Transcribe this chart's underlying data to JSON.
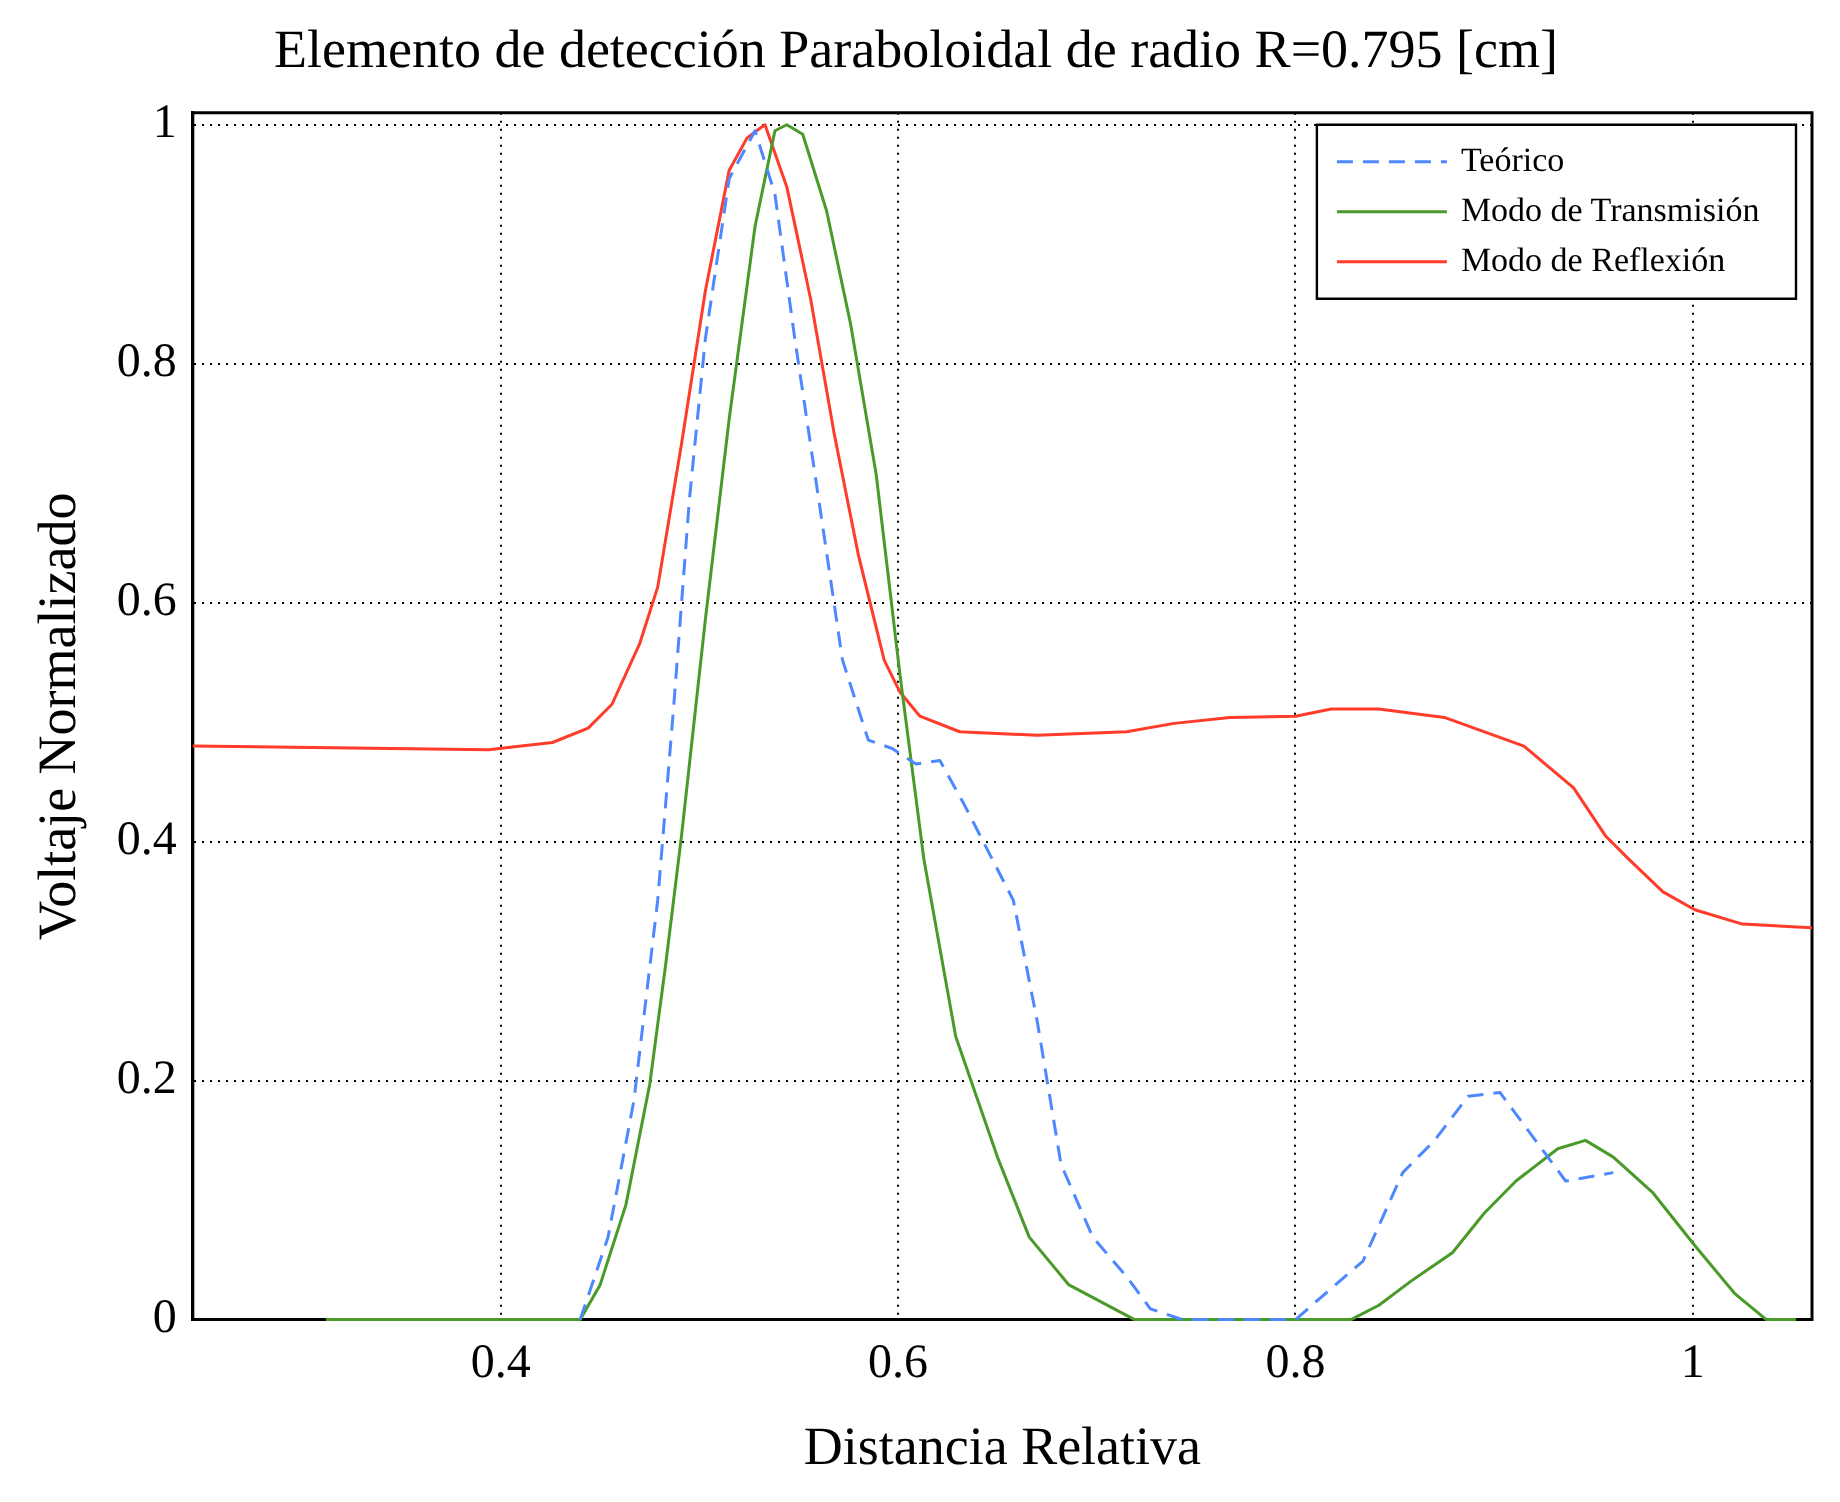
{
  "chart_data": {
    "type": "line",
    "title": "Elemento de detección Paraboloidal de radio R=0.795 [cm]",
    "xlabel": "Distancia Relativa",
    "ylabel": "Voltaje Normalizado",
    "xlim": [
      0.245,
      1.06
    ],
    "xticks": [
      0.4,
      0.6,
      0.8,
      1
    ],
    "ylim": [
      0,
      1.01
    ],
    "yticks": [
      0,
      0.2,
      0.4,
      0.6,
      0.8,
      1
    ],
    "grid": true,
    "legend": "top right",
    "marker": "none",
    "series": [
      {
        "name": "Teórico",
        "color": "#4d88ff",
        "line_style": "dashed",
        "x": [
          0.44,
          0.454,
          0.467,
          0.479,
          0.487,
          0.495,
          0.503,
          0.515,
          0.528,
          0.538,
          0.548,
          0.56,
          0.572,
          0.585,
          0.597,
          0.609,
          0.621,
          0.633,
          0.658,
          0.67,
          0.682,
          0.698,
          0.715,
          0.727,
          0.743,
          0.8,
          0.834,
          0.854,
          0.87,
          0.887,
          0.903,
          0.915,
          0.936,
          0.96
        ],
        "values": [
          0,
          0.069,
          0.183,
          0.351,
          0.512,
          0.687,
          0.821,
          0.955,
          0.995,
          0.942,
          0.821,
          0.687,
          0.552,
          0.485,
          0.478,
          0.465,
          0.468,
          0.432,
          0.351,
          0.25,
          0.13,
          0.069,
          0.036,
          0.009,
          0,
          0,
          0.049,
          0.123,
          0.15,
          0.187,
          0.19,
          0.163,
          0.116,
          0.123
        ]
      },
      {
        "name": "Modo de Transmisión",
        "color": "#4a9a2a",
        "line_style": "solid",
        "x": [
          0.312,
          0.44,
          0.45,
          0.463,
          0.475,
          0.483,
          0.491,
          0.503,
          0.515,
          0.528,
          0.538,
          0.544,
          0.552,
          0.564,
          0.576,
          0.589,
          0.601,
          0.613,
          0.629,
          0.65,
          0.666,
          0.686,
          0.719,
          0.828,
          0.842,
          0.858,
          0.879,
          0.895,
          0.911,
          0.932,
          0.946,
          0.96,
          0.98,
          1.001,
          1.021,
          1.037,
          1.052
        ],
        "values": [
          0,
          0,
          0.029,
          0.096,
          0.197,
          0.297,
          0.405,
          0.586,
          0.754,
          0.915,
          0.995,
          1,
          0.992,
          0.928,
          0.834,
          0.707,
          0.539,
          0.385,
          0.237,
          0.136,
          0.069,
          0.029,
          0,
          0,
          0.012,
          0.032,
          0.056,
          0.089,
          0.116,
          0.143,
          0.15,
          0.136,
          0.106,
          0.062,
          0.022,
          0,
          0
        ]
      },
      {
        "name": "Modo de Reflexión",
        "color": "#ff3b2a",
        "line_style": "solid",
        "x": [
          0.245,
          0.394,
          0.426,
          0.444,
          0.456,
          0.47,
          0.479,
          0.491,
          0.503,
          0.515,
          0.524,
          0.533,
          0.544,
          0.556,
          0.568,
          0.58,
          0.593,
          0.601,
          0.611,
          0.631,
          0.67,
          0.715,
          0.739,
          0.767,
          0.8,
          0.818,
          0.842,
          0.875,
          0.915,
          0.94,
          0.956,
          0.968,
          0.985,
          1.001,
          1.025,
          1.06
        ],
        "values": [
          0.48,
          0.477,
          0.483,
          0.495,
          0.515,
          0.566,
          0.613,
          0.733,
          0.861,
          0.962,
          0.989,
          1,
          0.948,
          0.854,
          0.74,
          0.64,
          0.552,
          0.525,
          0.505,
          0.492,
          0.489,
          0.492,
          0.499,
          0.504,
          0.505,
          0.511,
          0.511,
          0.504,
          0.48,
          0.445,
          0.405,
          0.385,
          0.358,
          0.343,
          0.331,
          0.328
        ]
      }
    ]
  }
}
